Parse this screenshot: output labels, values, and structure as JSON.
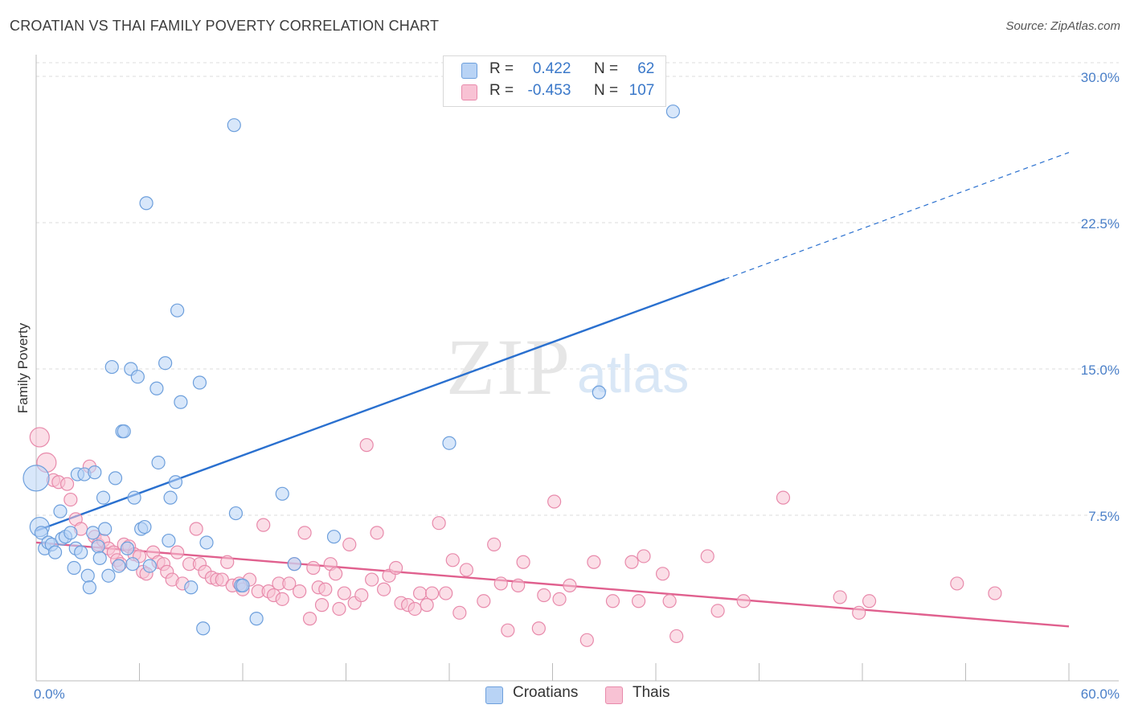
{
  "header": {
    "title": "CROATIAN VS THAI FAMILY POVERTY CORRELATION CHART",
    "source": "Source: ZipAtlas.com"
  },
  "watermark": {
    "zip": "ZIP",
    "atlas": "atlas"
  },
  "legend": {
    "rows": [
      {
        "r_label": "R =",
        "r_value": "0.422",
        "n_label": "N =",
        "n_value": "62"
      },
      {
        "r_label": "R =",
        "r_value": "-0.453",
        "n_label": "N =",
        "n_value": "107"
      }
    ]
  },
  "bottom_legend": {
    "items": [
      "Croatians",
      "Thais"
    ]
  },
  "colors": {
    "croatian_fill": "#b8d3f5",
    "croatian_stroke": "#6d9fdc",
    "croatian_line": "#2a70cf",
    "thai_fill": "#f8c2d4",
    "thai_stroke": "#e88aab",
    "thai_line": "#e0608e",
    "grid": "#dddddd",
    "tick_label": "#4a7fc8"
  },
  "chart_data": {
    "type": "scatter",
    "title": "CROATIAN VS THAI FAMILY POVERTY CORRELATION CHART",
    "xlabel": "",
    "ylabel": "Family Poverty",
    "xlim": [
      0,
      60
    ],
    "ylim": [
      0,
      30
    ],
    "x_tick_labels": [
      "0.0%",
      "60.0%"
    ],
    "y_ticks": [
      7.5,
      15.0,
      22.5,
      30.0
    ],
    "y_tick_labels": [
      "7.5%",
      "15.0%",
      "22.5%",
      "30.0%"
    ],
    "grid": "horizontal dashed",
    "legend_position": "top-center",
    "series": [
      {
        "name": "Croatians",
        "r": 0.422,
        "n": 62,
        "trend": {
          "x0": 0,
          "y0": 6.7,
          "x1": 40,
          "y1": 19.6,
          "dashed_to_x": 60,
          "dashed_to_y": 26.1
        },
        "points": [
          [
            0,
            9.4,
            3
          ],
          [
            0.2,
            6.9,
            2
          ],
          [
            0.3,
            6.6,
            1
          ],
          [
            0.5,
            5.8,
            1
          ],
          [
            0.7,
            6.1,
            1
          ],
          [
            0.9,
            6.0,
            1
          ],
          [
            1.1,
            5.6,
            1
          ],
          [
            1.4,
            7.7,
            1
          ],
          [
            1.5,
            6.3,
            1
          ],
          [
            1.7,
            6.4,
            1
          ],
          [
            2.0,
            6.6,
            1
          ],
          [
            2.2,
            4.8,
            1
          ],
          [
            2.3,
            5.8,
            1
          ],
          [
            2.4,
            9.6,
            1
          ],
          [
            2.6,
            5.6,
            1
          ],
          [
            2.8,
            9.6,
            1
          ],
          [
            3.0,
            4.4,
            1
          ],
          [
            3.1,
            3.8,
            1
          ],
          [
            3.3,
            6.6,
            1
          ],
          [
            3.4,
            9.7,
            1
          ],
          [
            3.6,
            5.9,
            1
          ],
          [
            3.7,
            5.3,
            1
          ],
          [
            3.9,
            8.4,
            1
          ],
          [
            4.0,
            6.8,
            1
          ],
          [
            4.2,
            4.4,
            1
          ],
          [
            4.4,
            15.1,
            1
          ],
          [
            4.6,
            9.4,
            1
          ],
          [
            4.8,
            4.9,
            1
          ],
          [
            5.0,
            11.8,
            1
          ],
          [
            5.1,
            11.8,
            1
          ],
          [
            5.3,
            5.8,
            1
          ],
          [
            5.5,
            15.0,
            1
          ],
          [
            5.7,
            8.4,
            1
          ],
          [
            5.6,
            5.0,
            1
          ],
          [
            5.9,
            14.6,
            1
          ],
          [
            6.1,
            6.8,
            1
          ],
          [
            6.3,
            6.9,
            1
          ],
          [
            6.4,
            23.5,
            1
          ],
          [
            6.6,
            4.9,
            1
          ],
          [
            7.0,
            14.0,
            1
          ],
          [
            7.1,
            10.2,
            1
          ],
          [
            7.5,
            15.3,
            1
          ],
          [
            7.7,
            6.2,
            1
          ],
          [
            7.8,
            8.4,
            1
          ],
          [
            8.1,
            9.2,
            1
          ],
          [
            8.2,
            18.0,
            1
          ],
          [
            8.4,
            13.3,
            1
          ],
          [
            9.0,
            3.8,
            1
          ],
          [
            9.5,
            14.3,
            1
          ],
          [
            9.7,
            1.7,
            1
          ],
          [
            9.9,
            6.1,
            1
          ],
          [
            11.5,
            27.5,
            1
          ],
          [
            11.6,
            7.6,
            1
          ],
          [
            11.9,
            3.9,
            1
          ],
          [
            12.0,
            3.9,
            1
          ],
          [
            12.8,
            2.2,
            1
          ],
          [
            14.3,
            8.6,
            1
          ],
          [
            15.0,
            5.0,
            1
          ],
          [
            17.3,
            6.4,
            1
          ],
          [
            24.0,
            11.2,
            1
          ],
          [
            32.7,
            13.8,
            1
          ],
          [
            37.0,
            28.2,
            1
          ]
        ]
      },
      {
        "name": "Thais",
        "r": -0.453,
        "n": 107,
        "trend": {
          "x0": 0,
          "y0": 6.1,
          "x1": 60,
          "y1": 1.8
        },
        "points": [
          [
            0.2,
            11.5,
            2
          ],
          [
            0.6,
            10.2,
            2
          ],
          [
            1.0,
            9.3,
            1
          ],
          [
            1.3,
            9.2,
            1
          ],
          [
            1.8,
            9.1,
            1
          ],
          [
            2.0,
            8.3,
            1
          ],
          [
            2.3,
            7.3,
            1
          ],
          [
            2.6,
            6.8,
            1
          ],
          [
            3.1,
            10.0,
            1
          ],
          [
            3.4,
            6.4,
            1
          ],
          [
            3.6,
            6.0,
            1
          ],
          [
            3.9,
            6.2,
            1
          ],
          [
            4.2,
            5.8,
            1
          ],
          [
            4.5,
            5.6,
            1
          ],
          [
            4.7,
            5.2,
            1
          ],
          [
            4.9,
            5.0,
            1
          ],
          [
            5.1,
            6.0,
            1
          ],
          [
            5.4,
            5.9,
            1
          ],
          [
            5.7,
            5.5,
            1
          ],
          [
            6.0,
            5.4,
            1
          ],
          [
            6.2,
            4.6,
            1
          ],
          [
            6.4,
            4.5,
            1
          ],
          [
            6.8,
            5.6,
            1
          ],
          [
            7.1,
            5.1,
            1
          ],
          [
            7.4,
            5.0,
            1
          ],
          [
            7.6,
            4.6,
            1
          ],
          [
            7.9,
            4.2,
            1
          ],
          [
            8.2,
            5.6,
            1
          ],
          [
            8.5,
            4.0,
            1
          ],
          [
            8.9,
            5.0,
            1
          ],
          [
            9.3,
            6.8,
            1
          ],
          [
            9.5,
            5.0,
            1
          ],
          [
            9.8,
            4.6,
            1
          ],
          [
            10.2,
            4.3,
            1
          ],
          [
            10.5,
            4.2,
            1
          ],
          [
            10.8,
            4.2,
            1
          ],
          [
            11.1,
            5.1,
            1
          ],
          [
            11.4,
            3.9,
            1
          ],
          [
            11.8,
            4.0,
            1
          ],
          [
            12.0,
            3.7,
            1
          ],
          [
            12.4,
            4.2,
            1
          ],
          [
            12.9,
            3.6,
            1
          ],
          [
            13.2,
            7.0,
            1
          ],
          [
            13.5,
            3.6,
            1
          ],
          [
            13.8,
            3.4,
            1
          ],
          [
            14.1,
            4.0,
            1
          ],
          [
            14.3,
            3.2,
            1
          ],
          [
            14.7,
            4.0,
            1
          ],
          [
            15.0,
            5.0,
            1
          ],
          [
            15.3,
            3.6,
            1
          ],
          [
            15.6,
            6.6,
            1
          ],
          [
            15.9,
            2.2,
            1
          ],
          [
            16.1,
            4.8,
            1
          ],
          [
            16.4,
            3.8,
            1
          ],
          [
            16.6,
            2.9,
            1
          ],
          [
            16.8,
            3.7,
            1
          ],
          [
            17.1,
            5.0,
            1
          ],
          [
            17.4,
            4.5,
            1
          ],
          [
            17.6,
            2.7,
            1
          ],
          [
            17.9,
            3.5,
            1
          ],
          [
            18.2,
            6.0,
            1
          ],
          [
            18.5,
            3.0,
            1
          ],
          [
            18.9,
            3.4,
            1
          ],
          [
            19.2,
            11.1,
            1
          ],
          [
            19.5,
            4.2,
            1
          ],
          [
            19.8,
            6.6,
            1
          ],
          [
            20.2,
            3.7,
            1
          ],
          [
            20.5,
            4.4,
            1
          ],
          [
            20.9,
            4.8,
            1
          ],
          [
            21.2,
            3.0,
            1
          ],
          [
            21.6,
            2.9,
            1
          ],
          [
            22.0,
            2.7,
            1
          ],
          [
            22.3,
            3.5,
            1
          ],
          [
            22.7,
            2.9,
            1
          ],
          [
            23.0,
            3.5,
            1
          ],
          [
            23.4,
            7.1,
            1
          ],
          [
            23.8,
            3.5,
            1
          ],
          [
            24.2,
            5.2,
            1
          ],
          [
            24.6,
            2.5,
            1
          ],
          [
            25.0,
            4.7,
            1
          ],
          [
            26.0,
            3.1,
            1
          ],
          [
            26.6,
            6.0,
            1
          ],
          [
            27.0,
            4.0,
            1
          ],
          [
            27.4,
            1.6,
            1
          ],
          [
            28.0,
            3.9,
            1
          ],
          [
            28.3,
            5.1,
            1
          ],
          [
            29.2,
            1.7,
            1
          ],
          [
            29.5,
            3.4,
            1
          ],
          [
            30.1,
            8.2,
            1
          ],
          [
            30.4,
            3.2,
            1
          ],
          [
            31.0,
            3.9,
            1
          ],
          [
            32.0,
            1.1,
            1
          ],
          [
            32.4,
            5.1,
            1
          ],
          [
            33.5,
            3.1,
            1
          ],
          [
            34.6,
            5.1,
            1
          ],
          [
            35.0,
            3.1,
            1
          ],
          [
            35.3,
            5.4,
            1
          ],
          [
            36.4,
            4.5,
            1
          ],
          [
            36.8,
            3.1,
            1
          ],
          [
            37.2,
            1.3,
            1
          ],
          [
            39.0,
            5.4,
            1
          ],
          [
            39.6,
            2.6,
            1
          ],
          [
            41.1,
            3.1,
            1
          ],
          [
            43.4,
            8.4,
            1
          ],
          [
            46.7,
            3.3,
            1
          ],
          [
            47.8,
            2.5,
            1
          ],
          [
            48.4,
            3.1,
            1
          ],
          [
            53.5,
            4.0,
            1
          ],
          [
            55.7,
            3.5,
            1
          ]
        ]
      }
    ]
  }
}
